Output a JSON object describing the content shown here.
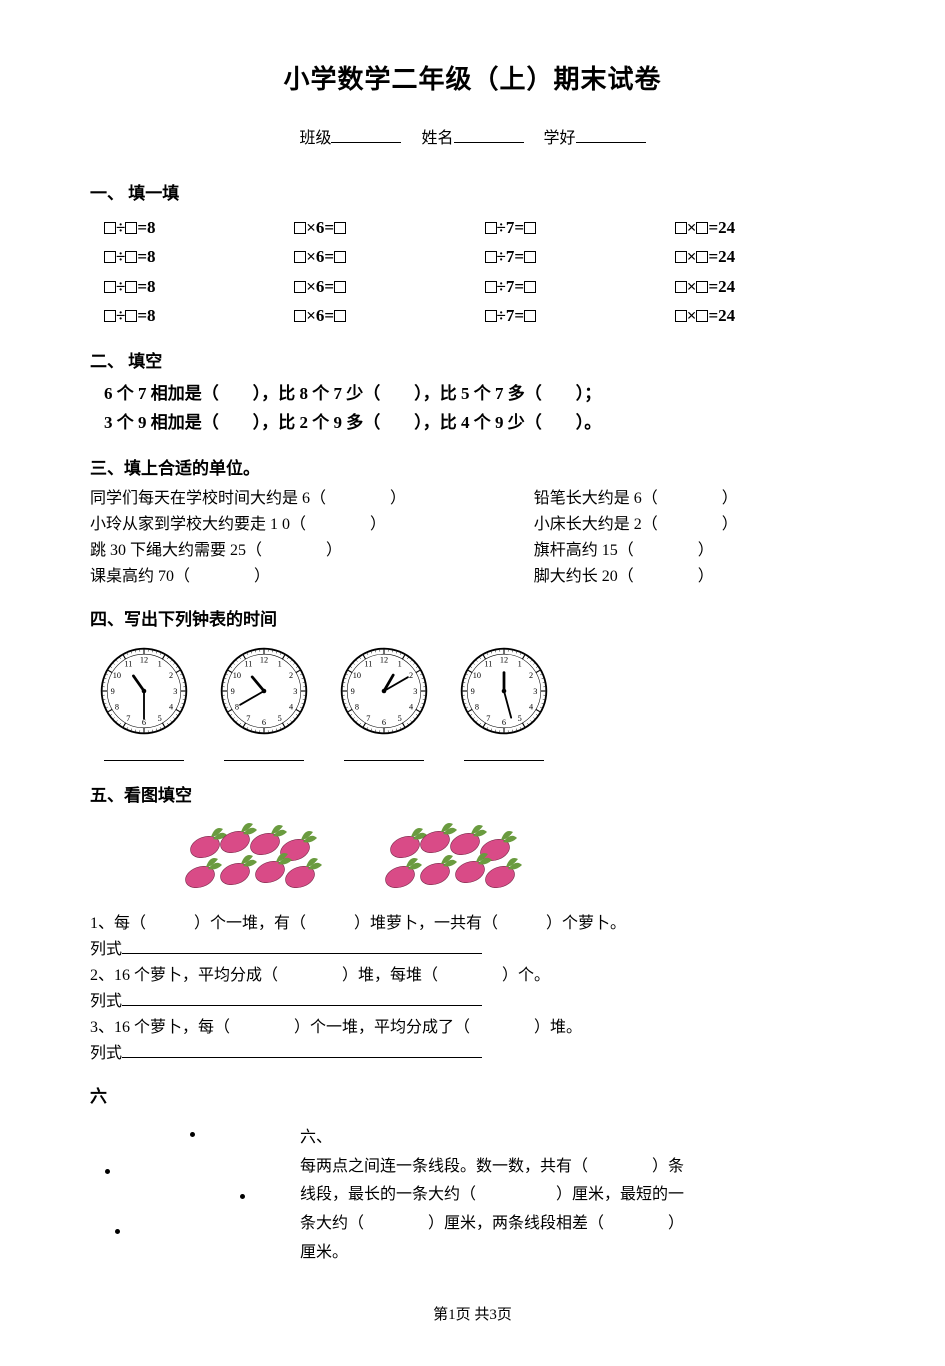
{
  "title": "小学数学二年级（上）期末试卷",
  "info": {
    "classLabel": "班级",
    "nameLabel": "姓名",
    "idLabel": "学好"
  },
  "s1": {
    "head": "一、 填一填",
    "cells": [
      "□÷□=8",
      "□×6=□",
      "□÷7=□",
      "□×□=24"
    ]
  },
  "s2": {
    "head": "二、 填空",
    "line1a": "6 个 7 相加是（",
    "line1b": "），比 8 个 7 少（",
    "line1c": "），比 5 个 7 多（",
    "line1d": "）；",
    "line2a": "3 个 9 相加是（",
    "line2b": "），比 2 个 9 多（",
    "line2c": "），比 4 个 9 少（",
    "line2d": "）。"
  },
  "s3": {
    "head": "三、填上合适的单位。",
    "rows": [
      {
        "l": "同学们每天在学校时间大约是 6（　　　　）",
        "r": "铅笔长大约是 6（　　　　）"
      },
      {
        "l": "小玲从家到学校大约要走 1 0（　　　　）",
        "r": "小床长大约是 2（　　　　）"
      },
      {
        "l": "跳 30 下绳大约需要 25（　　　　）",
        "r": "旗杆高约 15（　　　　）"
      },
      {
        "l": "课桌高约 70（　　　　）",
        "r": "脚大约长 20（　　　　）"
      }
    ]
  },
  "s4": {
    "head": "四、写出下列钟表的时间",
    "clocks": [
      {
        "hourAngle": -125,
        "minAngle": 90
      },
      {
        "hourAngle": -130,
        "minAngle": 150
      },
      {
        "hourAngle": -60,
        "minAngle": -30
      },
      {
        "hourAngle": -90,
        "minAngle": 75
      }
    ]
  },
  "s5": {
    "head": "五、看图填空",
    "radish_color": "#d94b87",
    "leaf_color": "#6a9b3f",
    "q1a": "1、每（　　　）个一堆，有（　　　）堆萝卜，一共有（　　　）个萝卜。",
    "ls": "列式",
    "q2": "2、16 个萝卜，平均分成（　　　　）堆，每堆（　　　　）个。",
    "q3": "3、16 个萝卜，每（　　　　）个一堆，平均分成了（　　　　）堆。"
  },
  "s6": {
    "head": "六",
    "sub": "六、",
    "text1": "每两点之间连一条线段。数一数，共有（　　　　）条",
    "text2": "线段，最长的一条大约（　　　　　）厘米，最短的一",
    "text3": "条大约（　　　　）厘米，两条线段相差（　　　　）",
    "text4": "厘米。"
  },
  "footer": "第1页 共3页"
}
